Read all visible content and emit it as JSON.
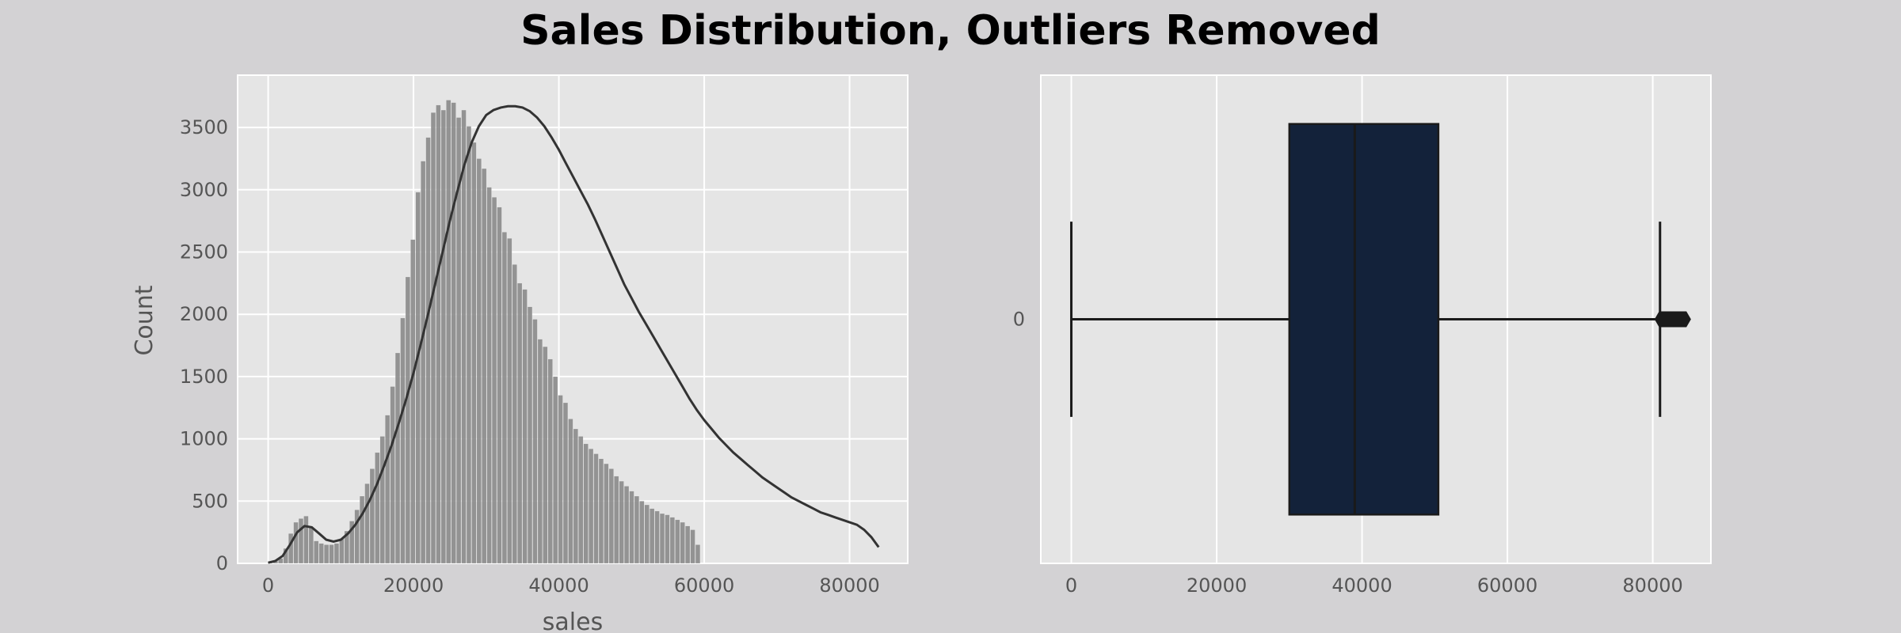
{
  "title": "Sales Distribution, Outliers Removed",
  "colors": {
    "figure_bg": "#d3d2d4",
    "axes_bg": "#e5e5e5",
    "grid": "#ffffff",
    "hist_bar": "#8a8a8a",
    "kde_line": "#333333",
    "box_fill": "#13223a",
    "box_edge": "#1a1a1a"
  },
  "chart_data": [
    {
      "type": "bar",
      "subtype": "histogram",
      "xlabel": "sales",
      "ylabel": "Count",
      "xlim": [
        -4200,
        88000
      ],
      "ylim": [
        0,
        3920
      ],
      "xticks": [
        0,
        20000,
        40000,
        60000,
        80000
      ],
      "yticks": [
        0,
        500,
        1000,
        1500,
        2000,
        2500,
        3000,
        3500
      ],
      "grid": true,
      "bin_width": 700,
      "counts": [
        15,
        20,
        40,
        120,
        240,
        330,
        360,
        380,
        290,
        180,
        160,
        150,
        150,
        160,
        200,
        260,
        340,
        430,
        540,
        640,
        760,
        890,
        1020,
        1190,
        1420,
        1690,
        1970,
        2300,
        2600,
        2980,
        3230,
        3420,
        3620,
        3680,
        3640,
        3720,
        3700,
        3580,
        3640,
        3510,
        3380,
        3250,
        3170,
        3020,
        2940,
        2860,
        2660,
        2610,
        2400,
        2250,
        2200,
        2060,
        1960,
        1800,
        1740,
        1640,
        1500,
        1350,
        1290,
        1160,
        1080,
        1020,
        960,
        920,
        880,
        840,
        800,
        760,
        700,
        660,
        620,
        580,
        540,
        500,
        470,
        440,
        420,
        400,
        390,
        370,
        350,
        330,
        300,
        270,
        150
      ],
      "kde": {
        "x": [
          0,
          1000,
          2000,
          3000,
          4000,
          5000,
          6000,
          7000,
          8000,
          9000,
          10000,
          11000,
          12000,
          13000,
          14000,
          15000,
          16000,
          17000,
          18000,
          19000,
          20000,
          21000,
          22000,
          23000,
          24000,
          25000,
          26000,
          27000,
          28000,
          29000,
          30000,
          31000,
          32000,
          33000,
          34000,
          35000,
          36000,
          37000,
          38000,
          39000,
          40000,
          41000,
          42000,
          43000,
          44000,
          45000,
          46000,
          47000,
          48000,
          49000,
          50000,
          51000,
          52000,
          53000,
          54000,
          55000,
          56000,
          57000,
          58000,
          59000,
          60000,
          61000,
          62000,
          63000,
          64000,
          65000,
          66000,
          67000,
          68000,
          69000,
          70000,
          71000,
          72000,
          73000,
          74000,
          75000,
          76000,
          77000,
          78000,
          79000,
          80000,
          81000,
          82000,
          83000,
          84000
        ],
        "y": [
          5,
          20,
          60,
          150,
          250,
          300,
          290,
          240,
          190,
          175,
          190,
          240,
          310,
          400,
          510,
          640,
          790,
          950,
          1130,
          1320,
          1530,
          1760,
          2000,
          2250,
          2500,
          2750,
          2980,
          3200,
          3380,
          3510,
          3600,
          3640,
          3660,
          3670,
          3670,
          3660,
          3630,
          3580,
          3510,
          3420,
          3320,
          3210,
          3100,
          2990,
          2880,
          2760,
          2630,
          2500,
          2370,
          2240,
          2130,
          2020,
          1920,
          1820,
          1720,
          1620,
          1520,
          1420,
          1320,
          1230,
          1150,
          1080,
          1010,
          950,
          890,
          840,
          790,
          740,
          690,
          650,
          610,
          570,
          530,
          500,
          470,
          440,
          410,
          390,
          370,
          350,
          330,
          310,
          270,
          210,
          130
        ]
      }
    },
    {
      "type": "box",
      "orient": "horizontal",
      "categories": [
        "0"
      ],
      "xlim": [
        -4200,
        88000
      ],
      "xticks": [
        0,
        20000,
        40000,
        60000,
        80000
      ],
      "grid": true,
      "whisker_low": 0,
      "q1": 30000,
      "median": 39000,
      "q3": 50500,
      "whisker_high": 81000,
      "outliers": [
        81500,
        82000,
        82500,
        83000,
        83500,
        84000
      ]
    }
  ]
}
